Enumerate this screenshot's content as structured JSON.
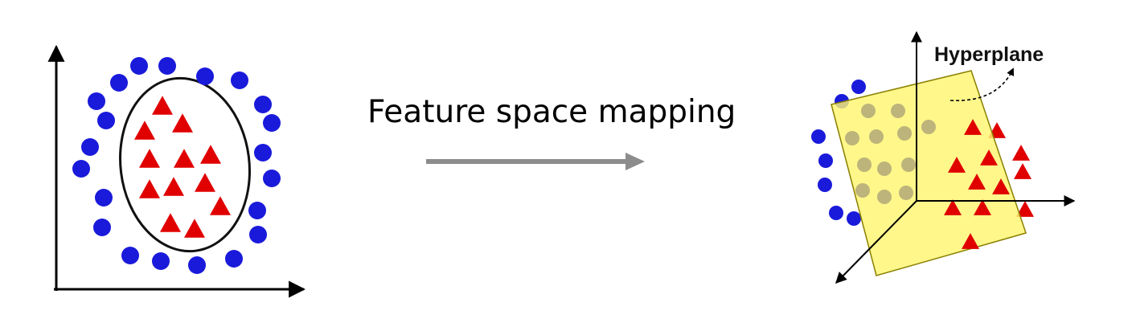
{
  "caption": "Feature space mapping",
  "hyperplane_label": "Hyperplane",
  "colors": {
    "circle_class": "#1a1adb",
    "triangle_class": "#e00000",
    "arrow": "#8c8c8c",
    "plane_fill": "#fff570",
    "plane_stroke": "#8a7f00"
  }
}
